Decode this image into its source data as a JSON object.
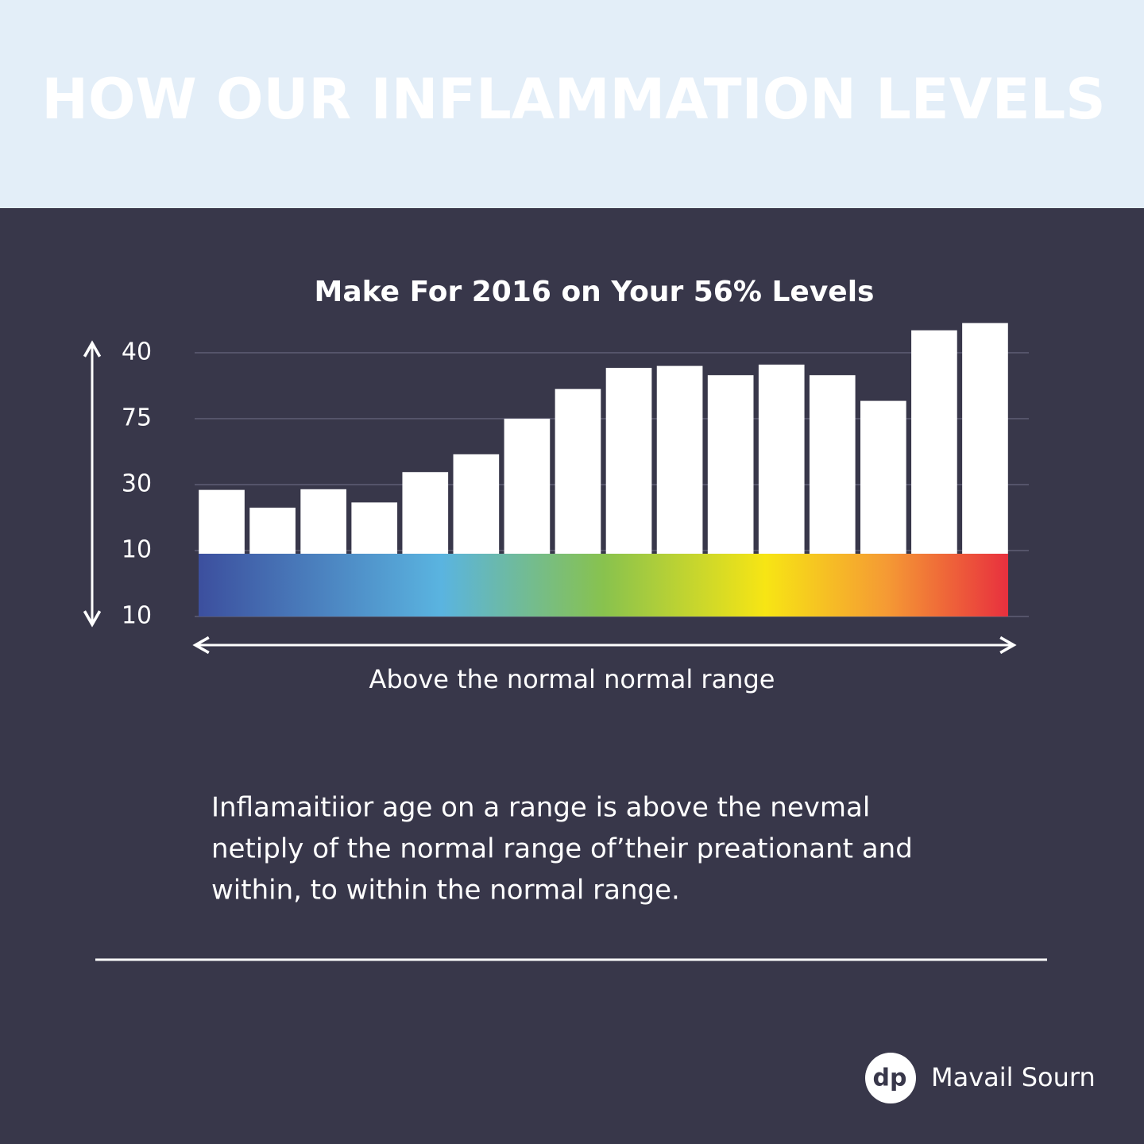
{
  "header": {
    "title": "HOW OUR INFLAMMATION LEVELS"
  },
  "chart_data": {
    "type": "bar",
    "title": "Make For 2016  on Your 56% Levels",
    "x_label": "Above the normal normal range",
    "values": [
      1.92,
      1.65,
      1.93,
      1.73,
      2.19,
      2.46,
      3.0,
      3.45,
      3.77,
      3.8,
      3.66,
      3.82,
      3.66,
      3.27,
      4.34,
      4.45
    ],
    "color": "#ffffff",
    "ylim": [
      0,
      4.5
    ],
    "yticks": [
      {
        "value": 0,
        "label": "10"
      },
      {
        "value": 1,
        "label": "10"
      },
      {
        "value": 2,
        "label": "30"
      },
      {
        "value": 3,
        "label": "75"
      },
      {
        "value": 4,
        "label": "40"
      }
    ],
    "grid": true
  },
  "paragraph": [
    "Inflamaitiior  age on a range is above the nevmal",
    "netiply of the normal range ofʼtheir preationant and",
    "within,  to within the normal range."
  ],
  "footer": {
    "logo": "dp",
    "brand": "Mavail Sourn"
  }
}
